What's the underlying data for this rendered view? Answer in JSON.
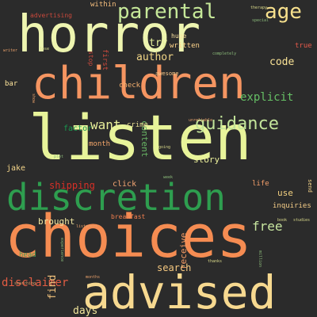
{
  "cloud": {
    "words": {
      "horror": "horror",
      "children": "children",
      "listen": "listen",
      "discretion": "discretion",
      "choices": "choices",
      "advised": "advised",
      "parental": "parental",
      "age": "age",
      "guidance": "guidance",
      "explicit": "explicit",
      "want": "want",
      "free": "free",
      "receive": "receive",
      "search": "search",
      "disclaimer": "disclaimer",
      "days": "days",
      "find": "find",
      "author": "author",
      "try": "try",
      "code": "code",
      "story": "story",
      "use": "use",
      "brought": "brought",
      "month": "month",
      "crime": "crime",
      "click": "click",
      "jake": "jake",
      "factor": "factor",
      "check": "check",
      "written": "written",
      "within": "within",
      "huge": "huge",
      "awesome": "awesome",
      "inquiries": "inquiries",
      "life": "life",
      "breakfast": "breakfast",
      "bar": "bar",
      "true": "true",
      "advertising": "advertising",
      "head": "head",
      "shipping": "shipping",
      "first": "first",
      "content": "content",
      "send": "send",
      "stop": "stop"
    },
    "tiny": {
      "t1": "therapy",
      "t2": "special",
      "t3": "writer",
      "t4": "completely",
      "t5": "lose",
      "t6": "show",
      "t7": "unreliable",
      "t8": "going",
      "t9": "week",
      "t10": "listeners",
      "t11": "experience",
      "t12": "thanks",
      "t13": "months",
      "t14": "searching",
      "t15": "book",
      "t16": "studies",
      "t17": "million",
      "t18": "plot"
    }
  }
}
